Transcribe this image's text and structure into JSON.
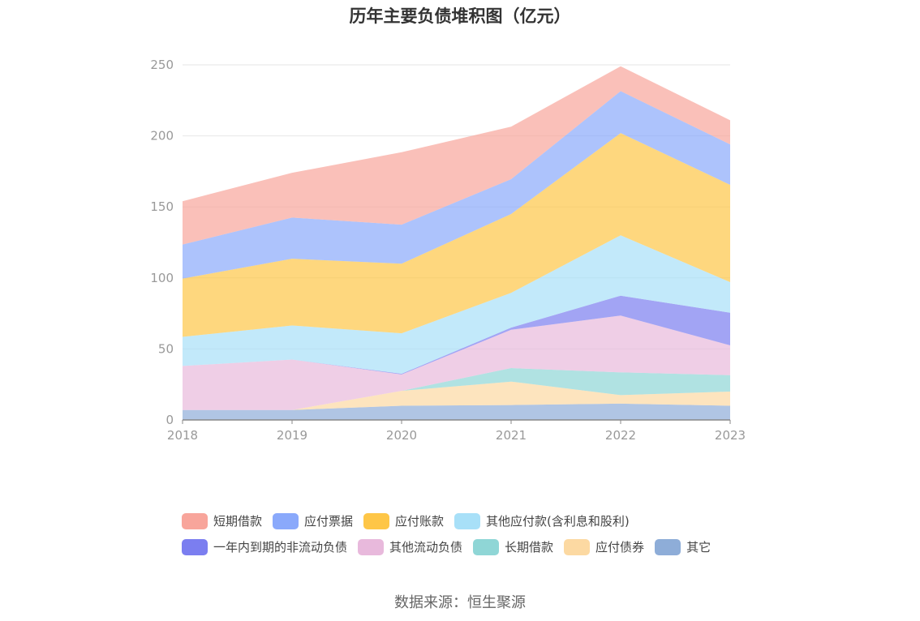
{
  "chart_data": {
    "type": "area",
    "stacked": true,
    "title": "历年主要负债堆积图（亿元）",
    "categories": [
      "2018",
      "2019",
      "2020",
      "2021",
      "2022",
      "2023"
    ],
    "ylim": [
      0,
      250
    ],
    "yticks": [
      0,
      50,
      100,
      150,
      200,
      250
    ],
    "grid": true,
    "legend_position": "bottom",
    "series": [
      {
        "name": "其它",
        "color": "#8eadd8",
        "values": [
          7,
          7,
          10,
          10.5,
          11.5,
          10
        ]
      },
      {
        "name": "应付债券",
        "color": "#fcd9a2",
        "values": [
          0,
          0,
          10.5,
          16.5,
          6,
          10
        ]
      },
      {
        "name": "长期借款",
        "color": "#8fd6d6",
        "values": [
          0,
          0,
          0,
          9.5,
          16,
          11.5
        ]
      },
      {
        "name": "其他流动负债",
        "color": "#e8b9dc",
        "values": [
          31,
          35.5,
          11.5,
          27,
          40,
          21
        ]
      },
      {
        "name": "一年内到期的非流动负债",
        "color": "#7b7ef0",
        "values": [
          0,
          0,
          0.5,
          1.5,
          14,
          23
        ]
      },
      {
        "name": "其他应付款(含利息和股利)",
        "color": "#a8e0f8",
        "values": [
          20.5,
          24,
          28.5,
          24.5,
          42.5,
          21.5
        ]
      },
      {
        "name": "应付账款",
        "color": "#fec647",
        "values": [
          41,
          47,
          49,
          55.5,
          72,
          68.5
        ]
      },
      {
        "name": "应付票据",
        "color": "#8aa9fb",
        "values": [
          24,
          29,
          27.5,
          24.5,
          29.5,
          28.5
        ]
      },
      {
        "name": "短期借款",
        "color": "#f8a59b",
        "values": [
          30.5,
          31.5,
          51,
          37,
          17.5,
          17
        ]
      }
    ]
  },
  "legend": {
    "row1": [
      {
        "label": "短期借款",
        "color": "#f8a59b"
      },
      {
        "label": "应付票据",
        "color": "#8aa9fb"
      },
      {
        "label": "应付账款",
        "color": "#fec647"
      },
      {
        "label": "其他应付款(含利息和股利)",
        "color": "#a8e0f8"
      }
    ],
    "row2": [
      {
        "label": "一年内到期的非流动负债",
        "color": "#7b7ef0"
      },
      {
        "label": "其他流动负债",
        "color": "#e8b9dc"
      },
      {
        "label": "长期借款",
        "color": "#8fd6d6"
      },
      {
        "label": "应付债券",
        "color": "#fcd9a2"
      },
      {
        "label": "其它",
        "color": "#8eadd8"
      }
    ]
  },
  "source": "数据来源：恒生聚源"
}
